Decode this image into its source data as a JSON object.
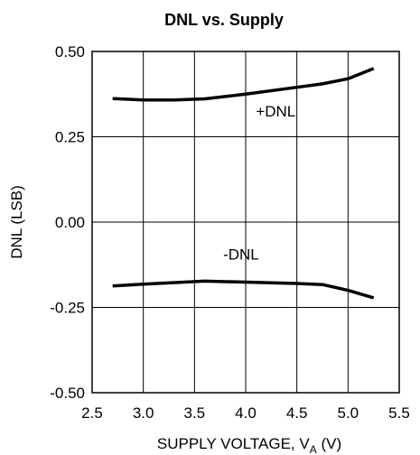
{
  "chart_data": {
    "type": "line",
    "title": "DNL vs. Supply",
    "xlabel_main": "SUPPLY VOLTAGE, V",
    "xlabel_sub": "A",
    "xlabel_tail": " (V)",
    "ylabel": "DNL (LSB)",
    "xlim": [
      2.5,
      5.5
    ],
    "ylim": [
      -0.5,
      0.5
    ],
    "x_ticks": [
      2.5,
      3.0,
      3.5,
      4.0,
      4.5,
      5.0,
      5.5
    ],
    "x_tick_labels": [
      "2.5",
      "3.0",
      "3.5",
      "4.0",
      "4.5",
      "5.0",
      "5.5"
    ],
    "y_ticks": [
      0.5,
      0.25,
      0.0,
      -0.25,
      -0.5
    ],
    "y_tick_labels": [
      "0.50",
      "0.25",
      "0.00",
      "-0.25",
      "-0.50"
    ],
    "grid": true,
    "series": [
      {
        "name": "+DNL",
        "x": [
          2.7,
          3.0,
          3.3,
          3.6,
          4.0,
          4.5,
          4.75,
          5.0,
          5.25
        ],
        "y": [
          0.362,
          0.358,
          0.358,
          0.361,
          0.375,
          0.395,
          0.405,
          0.42,
          0.45
        ]
      },
      {
        "name": "-DNL",
        "x": [
          2.7,
          3.0,
          3.6,
          4.0,
          4.5,
          4.75,
          5.0,
          5.25
        ],
        "y": [
          -0.187,
          -0.182,
          -0.173,
          -0.176,
          -0.18,
          -0.183,
          -0.2,
          -0.222
        ]
      }
    ],
    "annotations": [
      {
        "text": "+DNL",
        "x": 4.1,
        "y": 0.31
      },
      {
        "text": "-DNL",
        "x": 3.78,
        "y": -0.11
      }
    ]
  }
}
